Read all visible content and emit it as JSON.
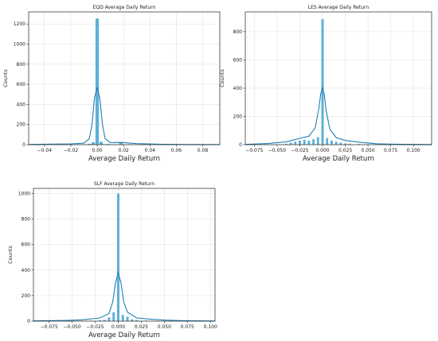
{
  "chart_data": [
    {
      "type": "histogram",
      "title": "EQD Average Daily Return",
      "xlabel": "Average Daily Return",
      "ylabel": "Counts",
      "xlim": [
        -0.052,
        0.093
      ],
      "ylim": [
        0,
        1320
      ],
      "xticks": [
        -0.04,
        -0.02,
        0.0,
        0.02,
        0.04,
        0.06,
        0.08
      ],
      "xtick_labels": [
        "−0.04",
        "−0.02",
        "0.00",
        "0.02",
        "0.04",
        "0.06",
        "0.08"
      ],
      "yticks": [
        0,
        200,
        400,
        600,
        800,
        1000,
        1200
      ],
      "ytick_labels": [
        "0",
        "200",
        "400",
        "600",
        "800",
        "1000",
        "1200"
      ],
      "grid": true,
      "bins": [
        {
          "x": -0.045,
          "count": 2
        },
        {
          "x": -0.035,
          "count": 3
        },
        {
          "x": -0.025,
          "count": 4
        },
        {
          "x": -0.015,
          "count": 6
        },
        {
          "x": -0.006,
          "count": 10
        },
        {
          "x": -0.003,
          "count": 25
        },
        {
          "x": 0.0,
          "count": 1255
        },
        {
          "x": 0.003,
          "count": 30
        },
        {
          "x": 0.008,
          "count": 8
        },
        {
          "x": 0.018,
          "count": 20
        },
        {
          "x": 0.025,
          "count": 6
        },
        {
          "x": 0.035,
          "count": 4
        },
        {
          "x": 0.045,
          "count": 3
        },
        {
          "x": 0.06,
          "count": 2
        }
      ],
      "kde": {
        "x": [
          -0.052,
          -0.04,
          -0.02,
          -0.01,
          -0.006,
          -0.004,
          -0.002,
          0.0,
          0.002,
          0.004,
          0.006,
          0.01,
          0.018,
          0.03,
          0.05,
          0.07,
          0.093
        ],
        "y": [
          3,
          5,
          8,
          15,
          60,
          200,
          470,
          570,
          460,
          200,
          60,
          20,
          22,
          10,
          4,
          2,
          1
        ]
      }
    },
    {
      "type": "histogram",
      "title": "LES Average Daily Return",
      "xlabel": "Average Daily Return",
      "ylabel": "Counts",
      "xlim": [
        -0.085,
        0.12
      ],
      "ylim": [
        0,
        940
      ],
      "xticks": [
        -0.075,
        -0.05,
        -0.025,
        0.0,
        0.025,
        0.05,
        0.075,
        0.1
      ],
      "xtick_labels": [
        "−0.075",
        "−0.050",
        "−0.025",
        "0.000",
        "0.025",
        "0.050",
        "0.075",
        "0.100"
      ],
      "yticks": [
        0,
        200,
        400,
        600,
        800
      ],
      "ytick_labels": [
        "0",
        "200",
        "400",
        "600",
        "800"
      ],
      "grid": true,
      "bins": [
        {
          "x": -0.04,
          "count": 8
        },
        {
          "x": -0.035,
          "count": 15
        },
        {
          "x": -0.03,
          "count": 22
        },
        {
          "x": -0.025,
          "count": 30
        },
        {
          "x": -0.02,
          "count": 35
        },
        {
          "x": -0.015,
          "count": 28
        },
        {
          "x": -0.01,
          "count": 40
        },
        {
          "x": -0.005,
          "count": 55
        },
        {
          "x": 0.0,
          "count": 890
        },
        {
          "x": 0.005,
          "count": 48
        },
        {
          "x": 0.01,
          "count": 30
        },
        {
          "x": 0.015,
          "count": 22
        },
        {
          "x": 0.02,
          "count": 15
        },
        {
          "x": 0.025,
          "count": 10
        },
        {
          "x": 0.03,
          "count": 8
        },
        {
          "x": 0.04,
          "count": 6
        },
        {
          "x": 0.05,
          "count": 3
        }
      ],
      "kde": {
        "x": [
          -0.085,
          -0.06,
          -0.04,
          -0.025,
          -0.015,
          -0.008,
          -0.004,
          -0.002,
          0.0,
          0.002,
          0.004,
          0.008,
          0.015,
          0.025,
          0.04,
          0.06,
          0.08,
          0.12
        ],
        "y": [
          2,
          8,
          20,
          45,
          60,
          120,
          260,
          360,
          405,
          350,
          240,
          110,
          50,
          30,
          18,
          6,
          3,
          1
        ]
      }
    },
    {
      "type": "histogram",
      "title": "SLF Average Daily Return",
      "xlabel": "Average Daily Return",
      "ylabel": "Counts",
      "xlim": [
        -0.092,
        0.105
      ],
      "ylim": [
        0,
        1040
      ],
      "xticks": [
        -0.075,
        -0.05,
        -0.025,
        0.0,
        0.025,
        0.05,
        0.075,
        0.1
      ],
      "xtick_labels": [
        "−0.075",
        "−0.050",
        "−0.025",
        "0.000",
        "0.025",
        "0.050",
        "0.075",
        "0.100"
      ],
      "yticks": [
        0,
        200,
        400,
        600,
        800,
        1000
      ],
      "ytick_labels": [
        "0",
        "200",
        "400",
        "600",
        "800",
        "1000"
      ],
      "grid": true,
      "bins": [
        {
          "x": -0.03,
          "count": 5
        },
        {
          "x": -0.02,
          "count": 8
        },
        {
          "x": -0.015,
          "count": 12
        },
        {
          "x": -0.01,
          "count": 30
        },
        {
          "x": -0.005,
          "count": 70
        },
        {
          "x": 0.0,
          "count": 1000
        },
        {
          "x": 0.005,
          "count": 50
        },
        {
          "x": 0.01,
          "count": 35
        },
        {
          "x": 0.015,
          "count": 15
        },
        {
          "x": 0.02,
          "count": 10
        },
        {
          "x": 0.03,
          "count": 6
        },
        {
          "x": 0.05,
          "count": 4
        }
      ],
      "kde": {
        "x": [
          -0.092,
          -0.06,
          -0.04,
          -0.02,
          -0.01,
          -0.006,
          -0.003,
          0.0,
          0.003,
          0.006,
          0.01,
          0.02,
          0.035,
          0.05,
          0.075,
          0.105
        ],
        "y": [
          2,
          5,
          10,
          25,
          60,
          150,
          300,
          380,
          300,
          150,
          70,
          25,
          15,
          8,
          3,
          1
        ]
      }
    }
  ]
}
